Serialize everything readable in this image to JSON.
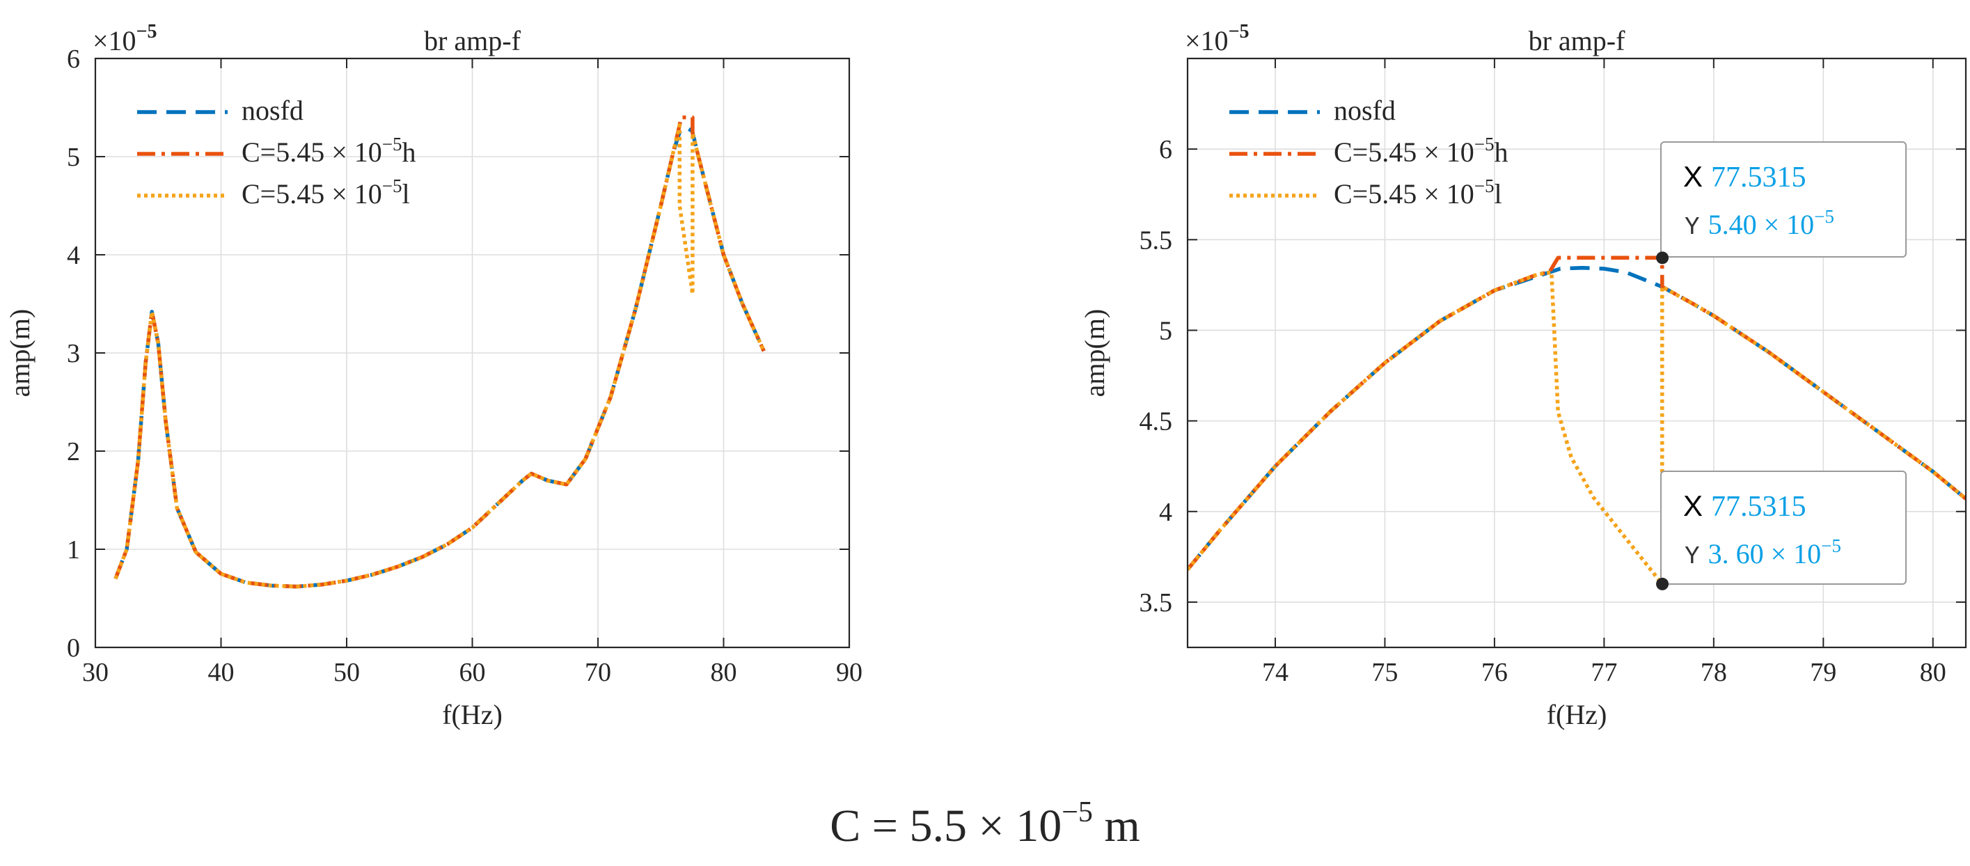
{
  "caption": {
    "prefix": "C = 5.5 × 10",
    "exp": "−5",
    "suffix": " m"
  },
  "colors": {
    "nosfd": "#0072BD",
    "high": "#E8520E",
    "low": "#F5A31A",
    "datatip_value": "#0AA0E6"
  },
  "chart_data": [
    {
      "type": "line",
      "title": "br amp-f",
      "xlabel": "f(Hz)",
      "ylabel": "amp(m)",
      "exponent_label": {
        "base": "×10",
        "exp": "−5"
      },
      "xlim": [
        30,
        90
      ],
      "ylim": [
        0,
        6
      ],
      "xticks": [
        30,
        40,
        50,
        60,
        70,
        80,
        90
      ],
      "yticks": [
        0,
        1,
        2,
        3,
        4,
        5,
        6
      ],
      "grid": true,
      "legend_position": "top-left",
      "legend": [
        {
          "key": "nosfd",
          "base": "nosfd",
          "exp": "",
          "suffix": ""
        },
        {
          "key": "high",
          "base": "C=5.45 × 10",
          "exp": "−5",
          "suffix": "h"
        },
        {
          "key": "low",
          "base": "C=5.45 × 10",
          "exp": "−5",
          "suffix": "l"
        }
      ],
      "series": [
        {
          "name": "nosfd",
          "x": [
            31.6,
            32.5,
            33.4,
            34.0,
            34.5,
            35.0,
            35.6,
            36.5,
            38.0,
            40.0,
            42.0,
            44.0,
            46.0,
            48.0,
            50.0,
            52.0,
            54.0,
            56.0,
            58.0,
            60.0,
            62.0,
            64.0,
            64.7,
            66.0,
            67.5,
            69.0,
            71.0,
            73.0,
            75.0,
            76.0,
            76.5,
            77.0,
            77.5,
            78.0,
            79.0,
            80.0,
            81.5,
            83.2
          ],
          "y": [
            0.7,
            1.0,
            1.9,
            2.9,
            3.42,
            3.1,
            2.3,
            1.42,
            0.97,
            0.75,
            0.66,
            0.63,
            0.62,
            0.64,
            0.68,
            0.74,
            0.82,
            0.92,
            1.05,
            1.22,
            1.46,
            1.7,
            1.77,
            1.7,
            1.66,
            1.92,
            2.55,
            3.45,
            4.5,
            5.05,
            5.25,
            5.3,
            5.26,
            5.0,
            4.5,
            4.0,
            3.5,
            3.02
          ]
        },
        {
          "name": "C=5.45 × 10−5h",
          "x": [
            31.6,
            32.5,
            33.4,
            34.0,
            34.5,
            35.0,
            35.6,
            36.5,
            38.0,
            40.0,
            42.0,
            44.0,
            46.0,
            48.0,
            50.0,
            52.0,
            54.0,
            56.0,
            58.0,
            60.0,
            62.0,
            64.0,
            64.7,
            66.0,
            67.5,
            69.0,
            71.0,
            73.0,
            75.0,
            76.0,
            76.5,
            76.6,
            77.53,
            77.53,
            78.0,
            79.0,
            80.0,
            81.5,
            83.2
          ],
          "y": [
            0.7,
            1.0,
            1.9,
            2.9,
            3.42,
            3.1,
            2.3,
            1.42,
            0.97,
            0.75,
            0.66,
            0.63,
            0.62,
            0.64,
            0.68,
            0.74,
            0.82,
            0.92,
            1.05,
            1.22,
            1.46,
            1.7,
            1.77,
            1.7,
            1.66,
            1.92,
            2.55,
            3.45,
            4.5,
            5.05,
            5.32,
            5.4,
            5.4,
            5.24,
            5.0,
            4.5,
            4.0,
            3.5,
            3.02
          ]
        },
        {
          "name": "C=5.45 × 10−5l",
          "x": [
            31.6,
            32.5,
            33.4,
            34.0,
            34.5,
            35.0,
            35.6,
            36.5,
            38.0,
            40.0,
            42.0,
            44.0,
            46.0,
            48.0,
            50.0,
            52.0,
            54.0,
            56.0,
            58.0,
            60.0,
            62.0,
            64.0,
            64.7,
            66.0,
            67.5,
            69.0,
            71.0,
            73.0,
            75.0,
            76.0,
            76.5,
            76.5,
            77.53,
            77.53,
            78.0,
            79.0,
            80.0,
            81.5,
            83.2
          ],
          "y": [
            0.7,
            1.0,
            1.9,
            2.9,
            3.42,
            3.1,
            2.3,
            1.42,
            0.97,
            0.75,
            0.66,
            0.63,
            0.62,
            0.64,
            0.68,
            0.74,
            0.82,
            0.92,
            1.05,
            1.22,
            1.46,
            1.7,
            1.77,
            1.7,
            1.66,
            1.92,
            2.55,
            3.45,
            4.5,
            5.05,
            5.32,
            4.5,
            3.6,
            5.24,
            5.0,
            4.5,
            4.0,
            3.5,
            3.02
          ]
        }
      ]
    },
    {
      "type": "line",
      "title": "br amp-f",
      "xlabel": "f(Hz)",
      "ylabel": "amp(m)",
      "exponent_label": {
        "base": "×10",
        "exp": "−5"
      },
      "xlim": [
        73.2,
        80.3
      ],
      "ylim": [
        3.25,
        6.5
      ],
      "xticks": [
        74,
        75,
        76,
        77,
        78,
        79,
        80
      ],
      "yticks": [
        3.5,
        4,
        4.5,
        5,
        5.5,
        6
      ],
      "grid": true,
      "legend_position": "top-left",
      "legend": [
        {
          "key": "nosfd",
          "base": "nosfd",
          "exp": "",
          "suffix": ""
        },
        {
          "key": "high",
          "base": "C=5.45 × 10",
          "exp": "−5",
          "suffix": "h"
        },
        {
          "key": "low",
          "base": "C=5.45 × 10",
          "exp": "−5",
          "suffix": "l"
        }
      ],
      "series": [
        {
          "name": "nosfd",
          "x": [
            73.2,
            73.5,
            74.0,
            74.5,
            75.0,
            75.5,
            76.0,
            76.4,
            76.6,
            76.8,
            77.0,
            77.2,
            77.53,
            77.8,
            78.0,
            78.5,
            79.0,
            79.5,
            80.0,
            80.3
          ],
          "y": [
            3.68,
            3.9,
            4.25,
            4.55,
            4.82,
            5.05,
            5.22,
            5.3,
            5.34,
            5.345,
            5.34,
            5.32,
            5.24,
            5.15,
            5.08,
            4.88,
            4.66,
            4.44,
            4.22,
            4.07
          ]
        },
        {
          "name": "C=5.45 × 10−5h",
          "x": [
            73.2,
            73.5,
            74.0,
            74.5,
            75.0,
            75.5,
            76.0,
            76.4,
            76.5,
            76.58,
            77.0,
            77.53,
            77.53,
            77.8,
            78.0,
            78.5,
            79.0,
            79.5,
            80.0,
            80.3
          ],
          "y": [
            3.68,
            3.9,
            4.25,
            4.55,
            4.82,
            5.05,
            5.22,
            5.31,
            5.32,
            5.4,
            5.4,
            5.4,
            5.24,
            5.15,
            5.08,
            4.88,
            4.66,
            4.44,
            4.22,
            4.07
          ]
        },
        {
          "name": "C=5.45 × 10−5l",
          "x": [
            73.2,
            73.5,
            74.0,
            74.5,
            75.0,
            75.5,
            76.0,
            76.4,
            76.52,
            76.58,
            76.7,
            76.9,
            77.2,
            77.53,
            77.53,
            77.8,
            78.0,
            78.5,
            79.0,
            79.5,
            80.0,
            80.3
          ],
          "y": [
            3.68,
            3.9,
            4.25,
            4.55,
            4.82,
            5.05,
            5.22,
            5.31,
            5.32,
            4.55,
            4.3,
            4.08,
            3.85,
            3.6,
            5.24,
            5.15,
            5.08,
            4.88,
            4.66,
            4.44,
            4.22,
            4.07
          ]
        }
      ],
      "datatips": [
        {
          "x": 77.5315,
          "y": 5.4,
          "x_label": "X",
          "x_text": "77.5315",
          "y_label": "Y",
          "y_text": "5.40 × 10",
          "y_exp": "−5"
        },
        {
          "x": 77.5315,
          "y": 3.6,
          "x_label": "X",
          "x_text": "77.5315",
          "y_label": "Y",
          "y_text": "3. 60 × 10",
          "y_exp": "−5"
        }
      ]
    }
  ]
}
